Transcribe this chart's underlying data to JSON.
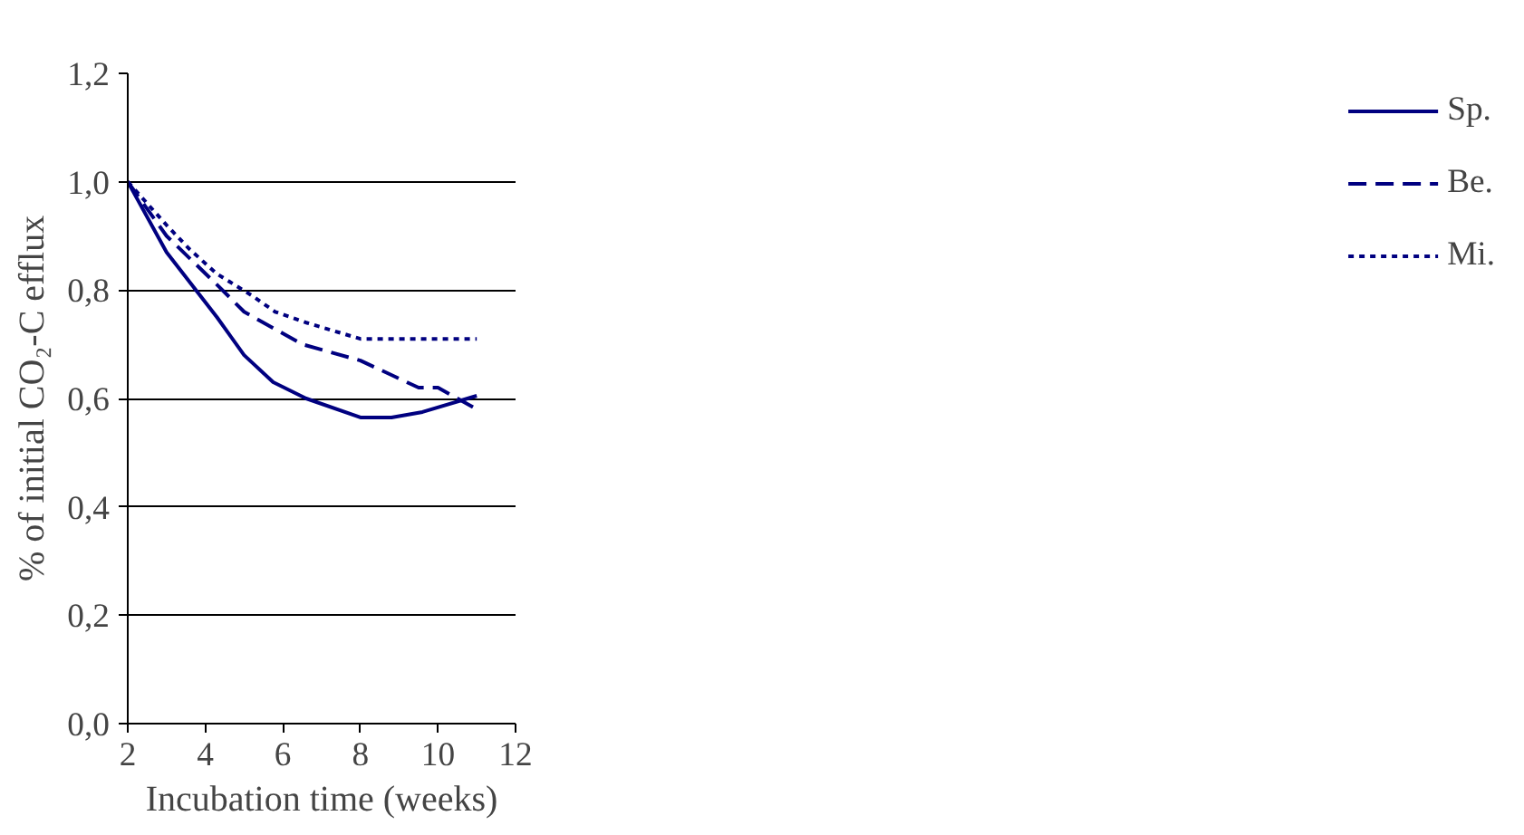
{
  "chart_data": {
    "type": "line",
    "xlabel": "Incubation time (weeks)",
    "ylabel": "% of initial CO₂-C efflux",
    "xlim": [
      2,
      12
    ],
    "xticks": [
      2,
      4,
      6,
      8,
      10,
      12
    ],
    "ylim": [
      0,
      1.2
    ],
    "yticks": [
      {
        "value": 0,
        "label": "0,0"
      },
      {
        "value": 0.2,
        "label": "0,2"
      },
      {
        "value": 0.4,
        "label": "0,4"
      },
      {
        "value": 0.6,
        "label": "0,6"
      },
      {
        "value": 0.8,
        "label": "0,8"
      },
      {
        "value": 1.0,
        "label": "1,0"
      },
      {
        "value": 1.2,
        "label": "1,2"
      }
    ],
    "grid": "y",
    "legend": "right",
    "marker": "none",
    "series": [
      {
        "name": "Sp.",
        "color": "#000080",
        "line_style": "solid",
        "x": [
          2,
          3,
          4.3,
          5,
          5.75,
          6.6,
          8,
          8.8,
          9.6,
          11
        ],
        "values": [
          1.0,
          0.87,
          0.75,
          0.68,
          0.63,
          0.6,
          0.565,
          0.565,
          0.575,
          0.605
        ]
      },
      {
        "name": "Be.",
        "color": "#000080",
        "line_style": "dashed",
        "x": [
          2,
          3,
          4.3,
          5,
          6.5,
          8,
          9.5,
          10,
          11
        ],
        "values": [
          1.0,
          0.9,
          0.81,
          0.76,
          0.7,
          0.67,
          0.62,
          0.62,
          0.58
        ]
      },
      {
        "name": "Mi.",
        "color": "#000080",
        "line_style": "dotted",
        "x": [
          2,
          3,
          3.6,
          4.3,
          5.2,
          5.8,
          6.6,
          8,
          11
        ],
        "values": [
          1.0,
          0.92,
          0.875,
          0.83,
          0.79,
          0.76,
          0.74,
          0.71,
          0.71
        ]
      }
    ]
  }
}
